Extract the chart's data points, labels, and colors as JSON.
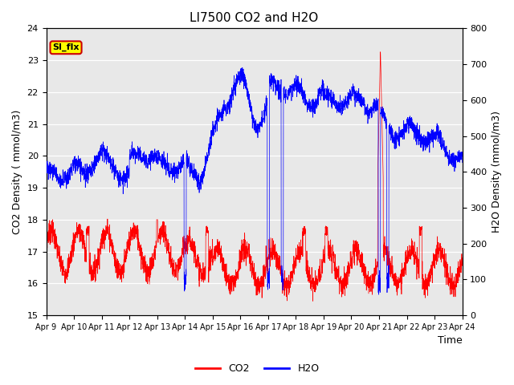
{
  "title": "LI7500 CO2 and H2O",
  "xlabel": "Time",
  "ylabel_left": "CO2 Density ( mmol/m3)",
  "ylabel_right": "H2O Density (mmol/m3)",
  "ylim_left": [
    15.0,
    24.0
  ],
  "ylim_right": [
    0,
    800
  ],
  "yticks_left": [
    15.0,
    16.0,
    17.0,
    18.0,
    19.0,
    20.0,
    21.0,
    22.0,
    23.0,
    24.0
  ],
  "yticks_right": [
    0,
    100,
    200,
    300,
    400,
    500,
    600,
    700,
    800
  ],
  "xtick_labels": [
    "Apr 9",
    "Apr 10",
    "Apr 11",
    "Apr 12",
    "Apr 13",
    "Apr 14",
    "Apr 15",
    "Apr 16",
    "Apr 17",
    "Apr 18",
    "Apr 19",
    "Apr 20",
    "Apr 21",
    "Apr 22",
    "Apr 23",
    "Apr 24"
  ],
  "co2_color": "#ff0000",
  "h2o_color": "#0000ff",
  "background_color": "#e8e8e8",
  "annotation_text": "SI_flx",
  "annotation_bg": "#ffff00",
  "annotation_border": "#cc0000",
  "legend_co2": "CO2",
  "legend_h2o": "H2O",
  "n_days": 15,
  "n_points": 3000
}
